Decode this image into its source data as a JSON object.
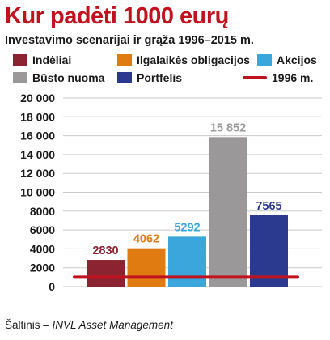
{
  "header": {
    "title": "Kur padėti 1000 eurų",
    "subtitle": "Investavimo scenarijai ir grąža 1996–2015 m."
  },
  "legend": [
    {
      "label": "Indėliai",
      "color": "#8b2330",
      "kind": "box"
    },
    {
      "label": "Ilgalaikės obligacijos",
      "color": "#e07b12",
      "kind": "box"
    },
    {
      "label": "Akcijos",
      "color": "#3aa6db",
      "kind": "box"
    },
    {
      "label": "Būsto nuoma",
      "color": "#9a9899",
      "kind": "box"
    },
    {
      "label": "Portfelis",
      "color": "#2b3a8f",
      "kind": "box"
    },
    {
      "label": "1996 m.",
      "color": "#c1121f",
      "kind": "line"
    }
  ],
  "chart_data": {
    "type": "bar",
    "categories": [
      "Indėliai",
      "Ilgalaikės obligacijos",
      "Akcijos",
      "Būsto nuoma",
      "Portfelis"
    ],
    "values": [
      2830,
      4062,
      5292,
      15852,
      7565
    ],
    "data_labels": [
      "2830",
      "4062",
      "5292",
      "15 852",
      "7565"
    ],
    "colors": [
      "#8b2330",
      "#e07b12",
      "#3aa6db",
      "#9a9899",
      "#2b3a8f"
    ],
    "label_colors": [
      "#8b2330",
      "#e07b12",
      "#3aa6db",
      "#9a9899",
      "#2b3a8f"
    ],
    "reference_line": {
      "label": "1996 m.",
      "value": 1000,
      "color": "#c1121f"
    },
    "ylim": [
      0,
      20000
    ],
    "yticks": [
      0,
      2000,
      4000,
      6000,
      8000,
      10000,
      12000,
      14000,
      16000,
      18000,
      20000
    ],
    "ytick_labels": [
      "0",
      "2000",
      "4000",
      "6000",
      "8000",
      "10 000",
      "12 000",
      "14 000",
      "16 000",
      "18 000",
      "20 000"
    ],
    "grid": true,
    "legend_position": "top"
  },
  "source": {
    "prefix": "Šaltinis – ",
    "name": "INVL Asset Management"
  }
}
